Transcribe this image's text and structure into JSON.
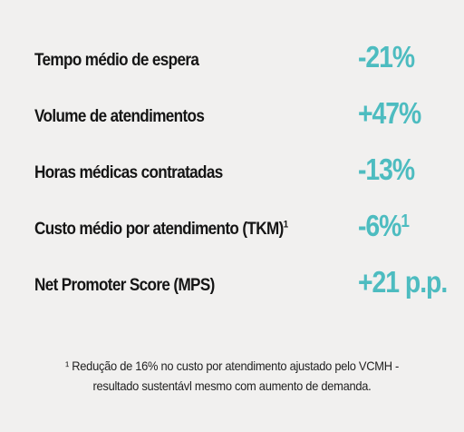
{
  "metrics": [
    {
      "label": "Tempo médio de espera",
      "label_note": "",
      "value": "-21%",
      "value_note": ""
    },
    {
      "label": "Volume de atendimentos",
      "label_note": "",
      "value": "+47%",
      "value_note": ""
    },
    {
      "label": "Horas médicas contratadas",
      "label_note": "",
      "value": "-13%",
      "value_note": ""
    },
    {
      "label": "Custo médio por atendimento (TKM)",
      "label_note": "1",
      "value": "-6%",
      "value_note": "1"
    },
    {
      "label": "Net Promoter Score (MPS)",
      "label_note": "",
      "value": "+21 p.p.",
      "value_note": ""
    }
  ],
  "footnote": {
    "line1": "¹ Redução de 16% no custo por atendimento ajustado pelo VCMH -",
    "line2": "resultado sustentávl mesmo com aumento de demanda."
  },
  "colors": {
    "background": "#f1f0ef",
    "label": "#151515",
    "value": "#4dbcc0"
  }
}
